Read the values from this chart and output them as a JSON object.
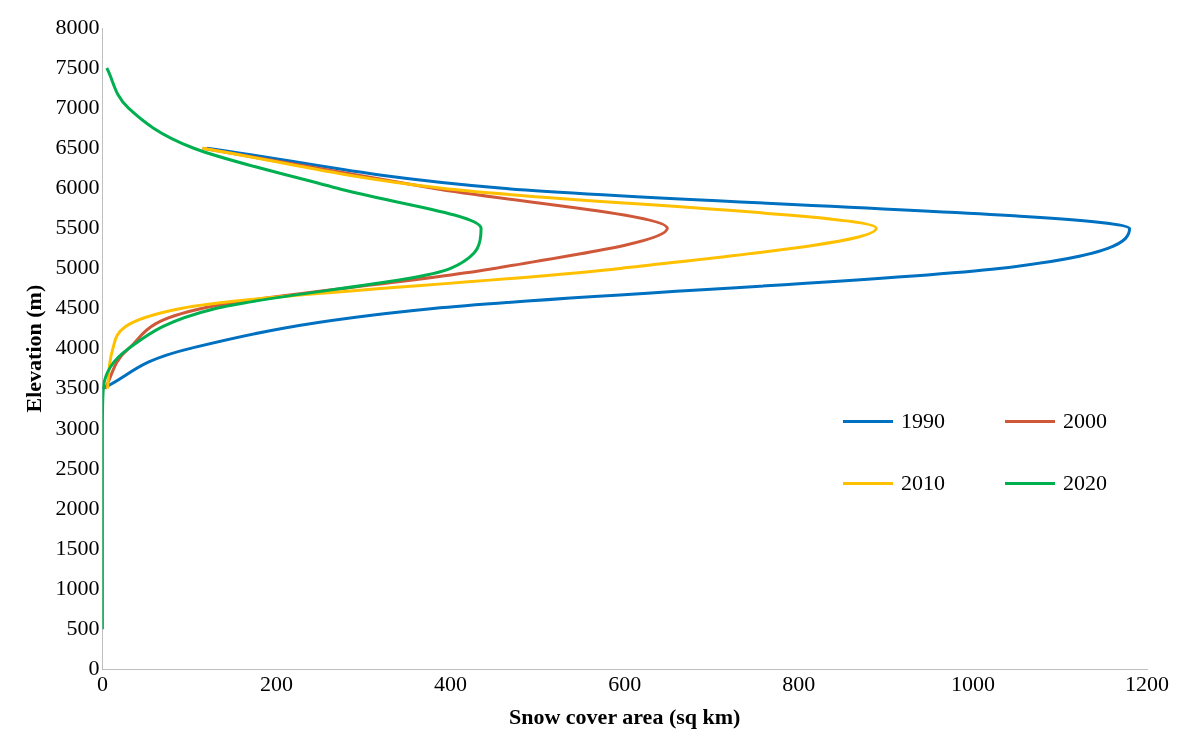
{
  "chart_data": {
    "type": "line",
    "orientation": "horizontal",
    "xlabel": "Snow cover area (sq km)",
    "ylabel": "Elevation (m)",
    "x": [
      500,
      1000,
      1500,
      2000,
      2500,
      3000,
      3500,
      4000,
      4500,
      5000,
      5500,
      6000,
      6500,
      7000,
      7500
    ],
    "series": [
      {
        "name": "1990",
        "color": "#0070c0",
        "values": [
          null,
          null,
          null,
          null,
          null,
          null,
          0,
          100,
          380,
          1030,
          1180,
          460,
          120,
          null,
          null
        ]
      },
      {
        "name": "2000",
        "color": "#d0583a",
        "values": [
          null,
          null,
          null,
          null,
          null,
          null,
          3,
          30,
          114,
          450,
          649,
          380,
          115,
          null,
          null
        ]
      },
      {
        "name": "2010",
        "color": "#ffc000",
        "values": [
          null,
          null,
          null,
          null,
          null,
          null,
          6,
          12,
          90,
          595,
          889,
          390,
          115,
          null,
          null
        ]
      },
      {
        "name": "2020",
        "color": "#00b050",
        "values": [
          0,
          0,
          0,
          0,
          0,
          0,
          1,
          30,
          130,
          400,
          435,
          270,
          105,
          30,
          5
        ]
      }
    ],
    "xlim": [
      0,
      1200
    ],
    "xticks": [
      0,
      200,
      400,
      600,
      800,
      1000,
      1200
    ],
    "ylim": [
      0,
      8000
    ],
    "yticks": [
      0,
      500,
      1000,
      1500,
      2000,
      2500,
      3000,
      3500,
      4000,
      4500,
      5000,
      5500,
      6000,
      6500,
      7000,
      7500,
      8000
    ],
    "grid": false,
    "legend": "right",
    "marker": "none",
    "line_style": "solid"
  }
}
